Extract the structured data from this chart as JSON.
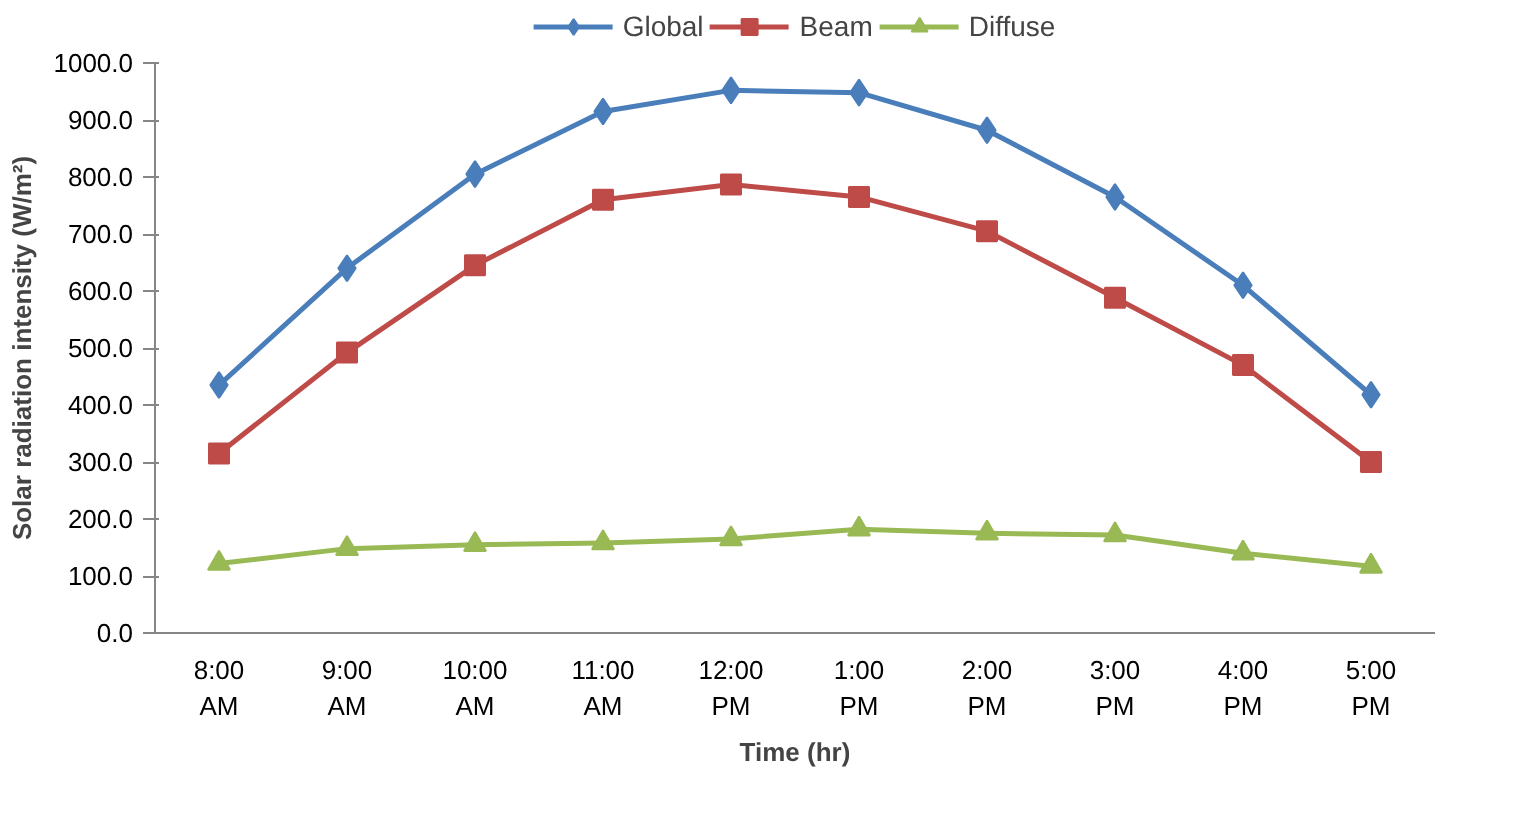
{
  "chart_data": {
    "type": "line",
    "xlabel": "Time (hr)",
    "ylabel": "Solar radiation intensity (W/m²)",
    "categories": [
      "8:00 AM",
      "9:00 AM",
      "10:00 AM",
      "11:00 AM",
      "12:00 PM",
      "1:00 PM",
      "2:00 PM",
      "3:00 PM",
      "4:00 PM",
      "5:00 PM"
    ],
    "series": [
      {
        "name": "Global",
        "color": "#4a7ebb",
        "marker": "diamond",
        "values": [
          435,
          640,
          805,
          915,
          952,
          948,
          882,
          765,
          610,
          418
        ]
      },
      {
        "name": "Beam",
        "color": "#be4b48",
        "marker": "square",
        "values": [
          315,
          492,
          645,
          760,
          787,
          765,
          705,
          588,
          470,
          300
        ]
      },
      {
        "name": "Diffuse",
        "color": "#98b954",
        "marker": "triangle",
        "values": [
          122,
          148,
          155,
          158,
          165,
          182,
          175,
          172,
          140,
          117
        ]
      }
    ],
    "ylim": [
      0,
      1000
    ],
    "yticks": [
      {
        "value": 0,
        "label": "0.0"
      },
      {
        "value": 100,
        "label": "100.0"
      },
      {
        "value": 200,
        "label": "200.0"
      },
      {
        "value": 300,
        "label": "300.0"
      },
      {
        "value": 400,
        "label": "400.0"
      },
      {
        "value": 500,
        "label": "500.0"
      },
      {
        "value": 600,
        "label": "600.0"
      },
      {
        "value": 700,
        "label": "700.0"
      },
      {
        "value": 800,
        "label": "800.0"
      },
      {
        "value": 900,
        "label": "900.0"
      },
      {
        "value": 1000,
        "label": "1000.0"
      }
    ],
    "grid": false,
    "legend": "top",
    "line_style": "solid"
  }
}
